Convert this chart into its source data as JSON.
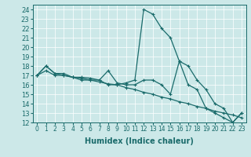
{
  "xlabel": "Humidex (Indice chaleur)",
  "background_color": "#cce8e8",
  "line_color": "#1a6b6b",
  "xlim": [
    -0.5,
    23.5
  ],
  "ylim": [
    12,
    24.5
  ],
  "yticks": [
    12,
    13,
    14,
    15,
    16,
    17,
    18,
    19,
    20,
    21,
    22,
    23,
    24
  ],
  "xticks": [
    0,
    1,
    2,
    3,
    4,
    5,
    6,
    7,
    8,
    9,
    10,
    11,
    12,
    13,
    14,
    15,
    16,
    17,
    18,
    19,
    20,
    21,
    22,
    23
  ],
  "series_peak_x": [
    0,
    1,
    2,
    3,
    4,
    5,
    6,
    7,
    8,
    9,
    10,
    11,
    12,
    13,
    14,
    15,
    16,
    17,
    18,
    19,
    20,
    21,
    22,
    23
  ],
  "series_peak_y": [
    17,
    17.5,
    17,
    17,
    16.8,
    16.5,
    16.5,
    16.5,
    16,
    16,
    16.2,
    16.5,
    24,
    23.5,
    22,
    21,
    18.5,
    18,
    16.5,
    15.5,
    14,
    13.5,
    12,
    13
  ],
  "series_upper_x": [
    0,
    1,
    2,
    3,
    4,
    5,
    6,
    7,
    8,
    9,
    10,
    11,
    12,
    13,
    14,
    15,
    16,
    17,
    18,
    19,
    20,
    21,
    22,
    23
  ],
  "series_upper_y": [
    17,
    18,
    17.2,
    17.2,
    16.8,
    16.8,
    16.7,
    16.5,
    17.5,
    16.2,
    16,
    16,
    16.5,
    16.5,
    16,
    15,
    18.5,
    16,
    15.5,
    13.5,
    13,
    12.5,
    12,
    13
  ],
  "series_lower_x": [
    0,
    1,
    2,
    3,
    4,
    5,
    6,
    7,
    8,
    9,
    10,
    11,
    12,
    13,
    14,
    15,
    16,
    17,
    18,
    19,
    20,
    21,
    22,
    23
  ],
  "series_lower_y": [
    17,
    18,
    17.2,
    17,
    16.8,
    16.7,
    16.5,
    16.3,
    16.1,
    16,
    15.7,
    15.5,
    15.2,
    15,
    14.7,
    14.5,
    14.2,
    14,
    13.7,
    13.5,
    13.2,
    13,
    12.8,
    12.5
  ]
}
